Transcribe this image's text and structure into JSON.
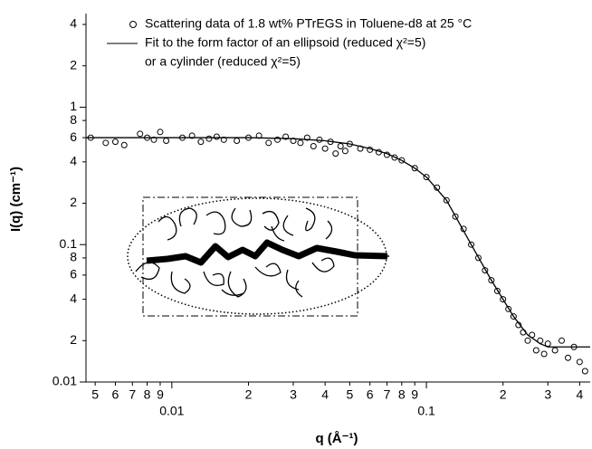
{
  "chart_data": {
    "type": "scatter",
    "xscale": "log",
    "yscale": "log",
    "xlabel": "q (Å⁻¹)",
    "ylabel": "I(q) (cm⁻¹)",
    "xlim": [
      0.0046,
      0.44
    ],
    "ylim": [
      0.01,
      4.8
    ],
    "xticks": [
      {
        "value": 0.005,
        "label": "5"
      },
      {
        "value": 0.006,
        "label": "6"
      },
      {
        "value": 0.007,
        "label": "7"
      },
      {
        "value": 0.008,
        "label": "8"
      },
      {
        "value": 0.009,
        "label": "9"
      },
      0.01,
      {
        "value": 0.02,
        "label": "2"
      },
      {
        "value": 0.03,
        "label": "3"
      },
      {
        "value": 0.04,
        "label": "4"
      },
      {
        "value": 0.05,
        "label": "5"
      },
      {
        "value": 0.06,
        "label": "6"
      },
      {
        "value": 0.07,
        "label": "7"
      },
      {
        "value": 0.08,
        "label": "8"
      },
      {
        "value": 0.09,
        "label": "9"
      },
      0.1,
      {
        "value": 0.2,
        "label": "2"
      },
      {
        "value": 0.3,
        "label": "3"
      },
      {
        "value": 0.4,
        "label": "4"
      }
    ],
    "yticks": [
      4,
      2,
      1,
      {
        "value": 0.8,
        "label": "8"
      },
      {
        "value": 0.6,
        "label": "6"
      },
      {
        "value": 0.4,
        "label": "4"
      },
      {
        "value": 0.2,
        "label": "2"
      },
      0.1,
      {
        "value": 0.08,
        "label": "8"
      },
      {
        "value": 0.06,
        "label": "6"
      },
      {
        "value": 0.04,
        "label": "4"
      },
      {
        "value": 0.02,
        "label": "2"
      },
      0.01
    ],
    "legend_note": "or a cylinder (reduced χ²=5)",
    "series": [
      {
        "name": "Scattering data of 1.8 wt% PTrEGS in Toluene-d8 at 25 °C",
        "type": "scatter",
        "color": "#000000",
        "x": [
          0.0048,
          0.0055,
          0.006,
          0.0065,
          0.0075,
          0.008,
          0.0085,
          0.009,
          0.0095,
          0.011,
          0.012,
          0.013,
          0.014,
          0.015,
          0.016,
          0.018,
          0.02,
          0.022,
          0.024,
          0.026,
          0.028,
          0.03,
          0.032,
          0.034,
          0.036,
          0.038,
          0.04,
          0.042,
          0.044,
          0.046,
          0.048,
          0.05,
          0.055,
          0.06,
          0.065,
          0.07,
          0.075,
          0.08,
          0.09,
          0.1,
          0.11,
          0.12,
          0.13,
          0.14,
          0.15,
          0.16,
          0.17,
          0.18,
          0.19,
          0.2,
          0.21,
          0.22,
          0.23,
          0.24,
          0.25,
          0.26,
          0.27,
          0.28,
          0.29,
          0.3,
          0.32,
          0.34,
          0.36,
          0.38,
          0.4,
          0.42
        ],
        "values": [
          0.6,
          0.55,
          0.56,
          0.53,
          0.64,
          0.6,
          0.58,
          0.66,
          0.57,
          0.6,
          0.62,
          0.56,
          0.59,
          0.61,
          0.58,
          0.57,
          0.6,
          0.62,
          0.55,
          0.58,
          0.61,
          0.57,
          0.55,
          0.6,
          0.52,
          0.58,
          0.5,
          0.56,
          0.46,
          0.52,
          0.48,
          0.54,
          0.5,
          0.49,
          0.47,
          0.45,
          0.43,
          0.41,
          0.36,
          0.31,
          0.26,
          0.21,
          0.16,
          0.13,
          0.1,
          0.08,
          0.065,
          0.055,
          0.046,
          0.04,
          0.034,
          0.03,
          0.026,
          0.023,
          0.02,
          0.022,
          0.017,
          0.02,
          0.016,
          0.019,
          0.017,
          0.02,
          0.015,
          0.018,
          0.014,
          0.012
        ]
      },
      {
        "name": "Fit to the form factor of an ellipsoid (reduced χ²=5)",
        "type": "line",
        "color": "#000000",
        "x": [
          0.0046,
          0.01,
          0.02,
          0.03,
          0.04,
          0.05,
          0.06,
          0.07,
          0.08,
          0.09,
          0.1,
          0.12,
          0.15,
          0.18,
          0.2,
          0.22,
          0.25,
          0.28,
          0.3,
          0.35,
          0.4,
          0.44
        ],
        "values": [
          0.6,
          0.6,
          0.6,
          0.59,
          0.57,
          0.54,
          0.5,
          0.46,
          0.41,
          0.36,
          0.31,
          0.21,
          0.1,
          0.055,
          0.04,
          0.03,
          0.022,
          0.019,
          0.018,
          0.018,
          0.018,
          0.018
        ]
      }
    ]
  }
}
